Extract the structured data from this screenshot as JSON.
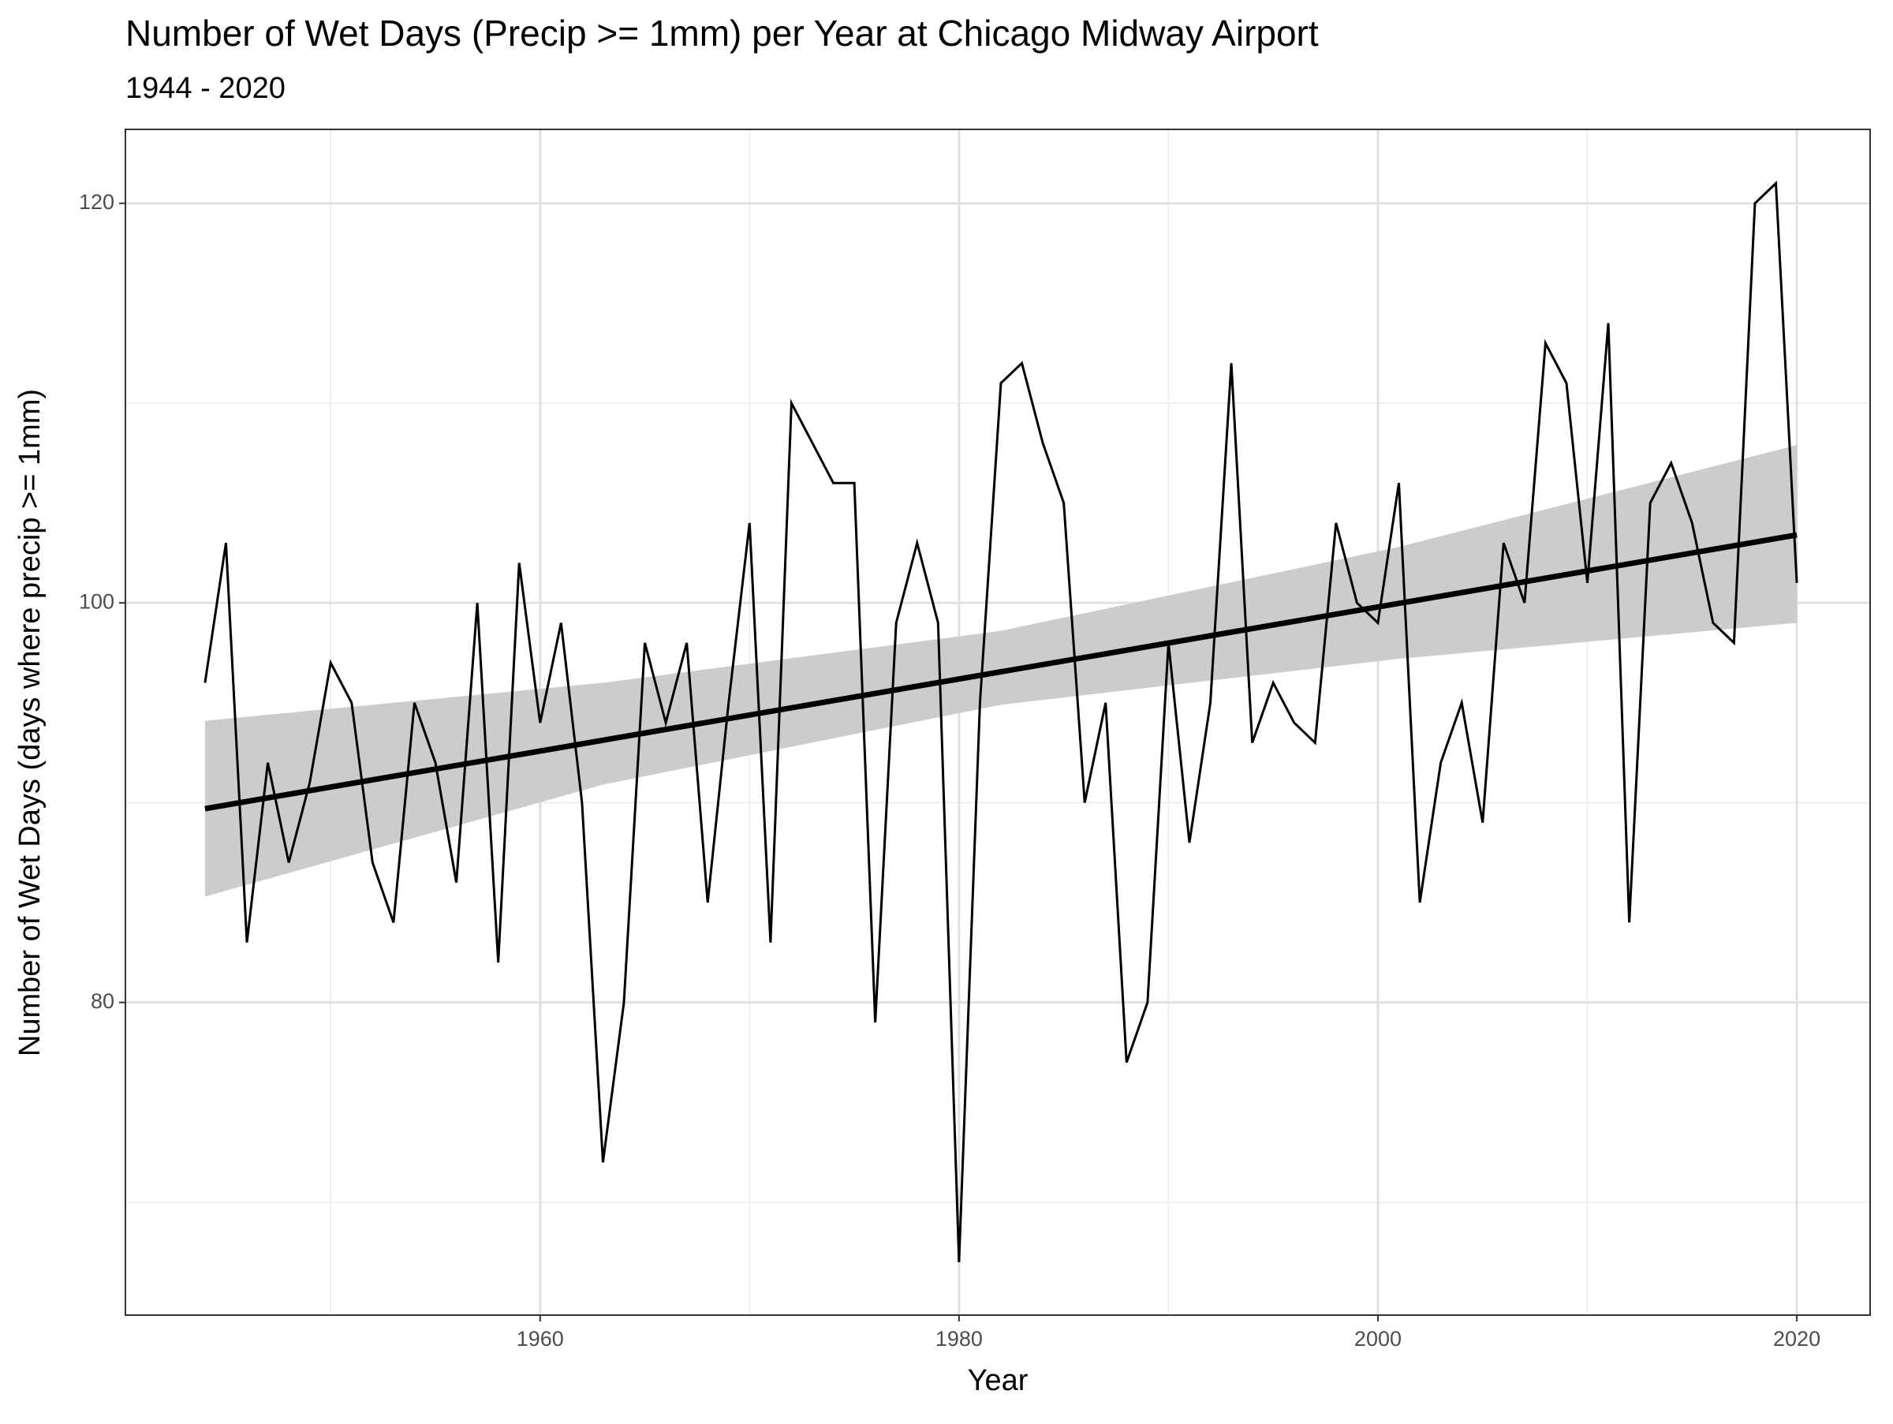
{
  "chart_data": {
    "type": "line",
    "title": "Number of Wet Days (Precip >= 1mm) per Year at Chicago Midway Airport",
    "subtitle": "1944 - 2020",
    "x_label": "Year",
    "y_label": "Number of Wet Days (days where precip >= 1mm)",
    "x": [
      1944,
      1945,
      1946,
      1947,
      1948,
      1949,
      1950,
      1951,
      1952,
      1953,
      1954,
      1955,
      1956,
      1957,
      1958,
      1959,
      1960,
      1961,
      1962,
      1963,
      1964,
      1965,
      1966,
      1967,
      1968,
      1969,
      1970,
      1971,
      1972,
      1973,
      1974,
      1975,
      1976,
      1977,
      1978,
      1979,
      1980,
      1981,
      1982,
      1983,
      1984,
      1985,
      1986,
      1987,
      1988,
      1989,
      1990,
      1991,
      1992,
      1993,
      1994,
      1995,
      1996,
      1997,
      1998,
      1999,
      2000,
      2001,
      2002,
      2003,
      2004,
      2005,
      2006,
      2007,
      2008,
      2009,
      2010,
      2011,
      2012,
      2013,
      2014,
      2015,
      2016,
      2017,
      2018,
      2019,
      2020
    ],
    "values": [
      96,
      103,
      83,
      92,
      87,
      91,
      97,
      95,
      87,
      84,
      95,
      92,
      86,
      100,
      82,
      102,
      94,
      99,
      90,
      72,
      80,
      98,
      94,
      98,
      85,
      95,
      104,
      83,
      110,
      108,
      106,
      106,
      79,
      99,
      103,
      99,
      67,
      95,
      111,
      112,
      108,
      105,
      90,
      95,
      77,
      80,
      98,
      88,
      95,
      112,
      93,
      96,
      94,
      93,
      104,
      100,
      99,
      106,
      85,
      92,
      95,
      89,
      103,
      100,
      113,
      111,
      101,
      114,
      84,
      105,
      107,
      104,
      99,
      98,
      120,
      121,
      101
    ],
    "color": "#000000",
    "trend": {
      "x": [
        1944,
        2020
      ],
      "values": [
        89.7,
        103.4
      ],
      "color": "#000000"
    },
    "band": {
      "x": [
        1944,
        1963,
        1982,
        2001,
        2020
      ],
      "lower": [
        85.3,
        90.9,
        94.9,
        97.2,
        99.0
      ],
      "upper": [
        94.1,
        96.0,
        98.6,
        102.8,
        107.9
      ],
      "color": "#cccccc"
    },
    "xlim": [
      1940.2,
      2023.5
    ],
    "ylim": [
      64.35,
      123.7
    ],
    "xticks": [
      1960,
      1980,
      2000,
      2020
    ],
    "yticks": [
      80,
      100,
      120
    ],
    "xminor": [
      1950,
      1970,
      1990,
      2010
    ],
    "yminor": [
      70,
      90,
      110
    ],
    "grid": true
  }
}
